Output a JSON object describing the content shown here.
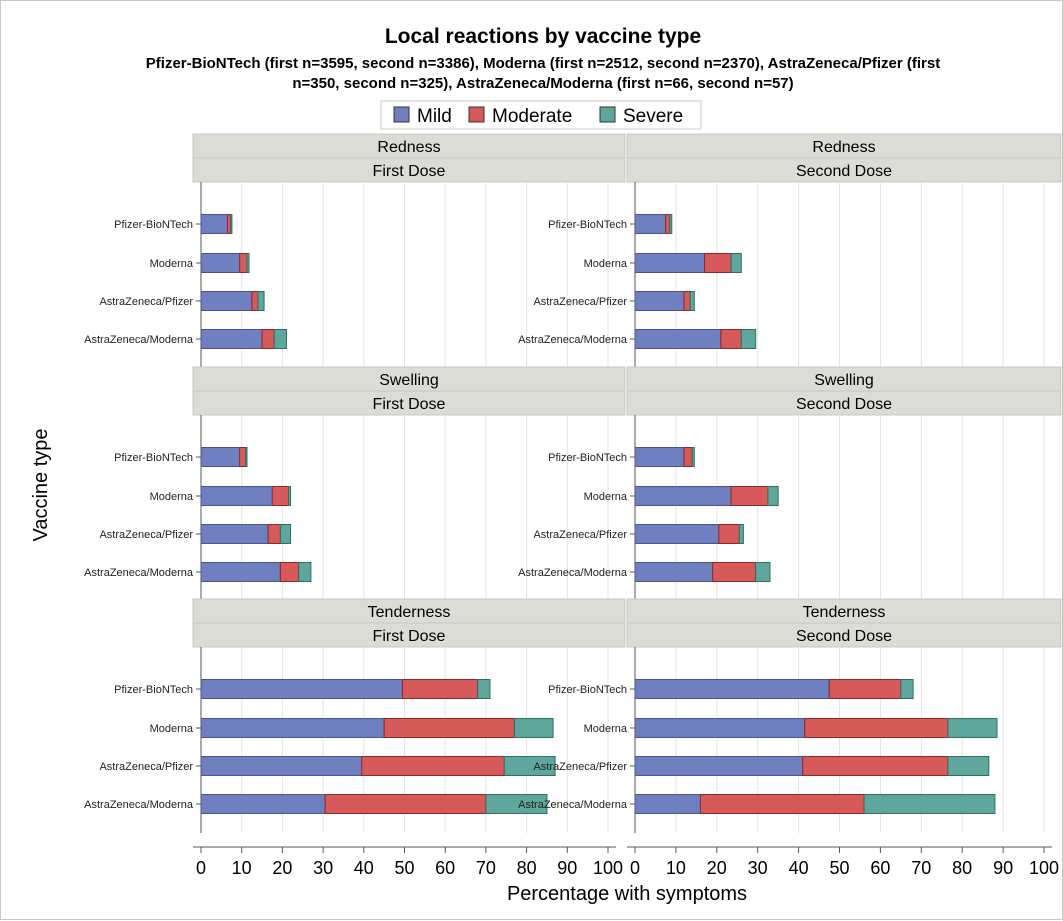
{
  "chart_data": {
    "type": "bar",
    "stacked": true,
    "orientation": "horizontal",
    "title": "Local reactions by vaccine type",
    "subtitle_lines": [
      "Pfizer-BioNTech (first n=3595, second n=3386), Moderna (first n=2512, second n=2370), AstraZeneca/Pfizer (first",
      "n=350, second n=325), AstraZeneca/Moderna (first n=66, second n=57)"
    ],
    "xlabel": "Percentage with symptoms",
    "ylabel": "Vaccine type",
    "xlim": [
      0,
      100
    ],
    "xticks": [
      0,
      10,
      20,
      30,
      40,
      50,
      60,
      70,
      80,
      90,
      100
    ],
    "grid": true,
    "legend_position": "top",
    "categories": [
      "Pfizer-BioNTech",
      "Moderna",
      "AstraZeneca/Pfizer",
      "AstraZeneca/Moderna"
    ],
    "legend": [
      {
        "name": "Mild",
        "color": "#6f7fbf"
      },
      {
        "name": "Moderate",
        "color": "#d65a5a"
      },
      {
        "name": "Severe",
        "color": "#5fa79c"
      }
    ],
    "rows": [
      "Redness",
      "Swelling",
      "Tenderness"
    ],
    "columns": [
      "First Dose",
      "Second Dose"
    ],
    "panels": [
      {
        "symptom": "Redness",
        "dose": "First Dose",
        "mild": [
          6.5,
          9.5,
          12.5,
          15.0
        ],
        "moderate": [
          0.8,
          1.8,
          1.5,
          3.0
        ],
        "severe": [
          0.3,
          0.5,
          1.5,
          3.0
        ]
      },
      {
        "symptom": "Redness",
        "dose": "Second Dose",
        "mild": [
          7.5,
          17.0,
          12.0,
          21.0
        ],
        "moderate": [
          1.0,
          6.5,
          1.5,
          5.0
        ],
        "severe": [
          0.5,
          2.5,
          1.0,
          3.5
        ]
      },
      {
        "symptom": "Swelling",
        "dose": "First Dose",
        "mild": [
          9.5,
          17.5,
          16.5,
          19.5
        ],
        "moderate": [
          1.5,
          4.0,
          3.0,
          4.5
        ],
        "severe": [
          0.3,
          0.5,
          2.5,
          3.0
        ]
      },
      {
        "symptom": "Swelling",
        "dose": "Second Dose",
        "mild": [
          12.0,
          23.5,
          20.5,
          19.0
        ],
        "moderate": [
          2.0,
          9.0,
          5.0,
          10.5
        ],
        "severe": [
          0.5,
          2.5,
          1.0,
          3.5
        ]
      },
      {
        "symptom": "Tenderness",
        "dose": "First Dose",
        "mild": [
          49.5,
          45.0,
          39.5,
          30.5
        ],
        "moderate": [
          18.5,
          32.0,
          35.0,
          39.5
        ],
        "severe": [
          3.0,
          9.5,
          12.5,
          15.0
        ]
      },
      {
        "symptom": "Tenderness",
        "dose": "Second Dose",
        "mild": [
          47.5,
          41.5,
          41.0,
          16.0
        ],
        "moderate": [
          17.5,
          35.0,
          35.5,
          40.0
        ],
        "severe": [
          3.0,
          12.0,
          10.0,
          32.0
        ]
      }
    ]
  }
}
